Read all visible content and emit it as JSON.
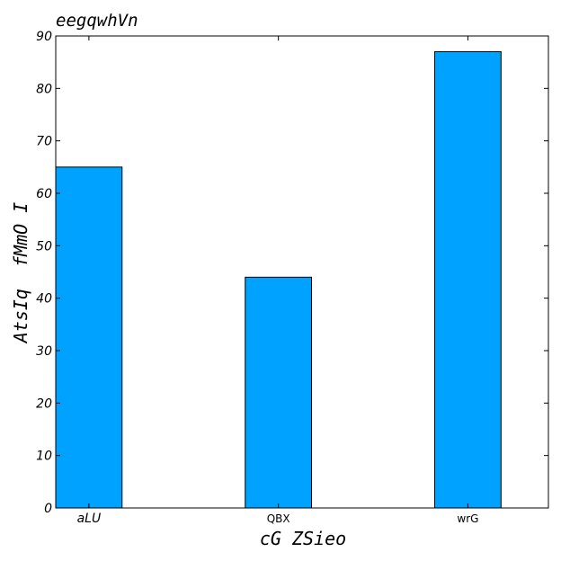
{
  "chart_data": {
    "type": "bar",
    "title": "eegqwhVn",
    "xlabel": "cG ZSieo",
    "ylabel": "AtsIq  fMmO I",
    "categories": [
      "aLU",
      "QBX",
      "wrG"
    ],
    "values": [
      65,
      44,
      87
    ],
    "ylim": [
      0,
      90
    ],
    "yticks": [
      0,
      10,
      20,
      30,
      40,
      50,
      60,
      70,
      80,
      90
    ],
    "bar_color": "#00a2ff",
    "grid": false
  }
}
